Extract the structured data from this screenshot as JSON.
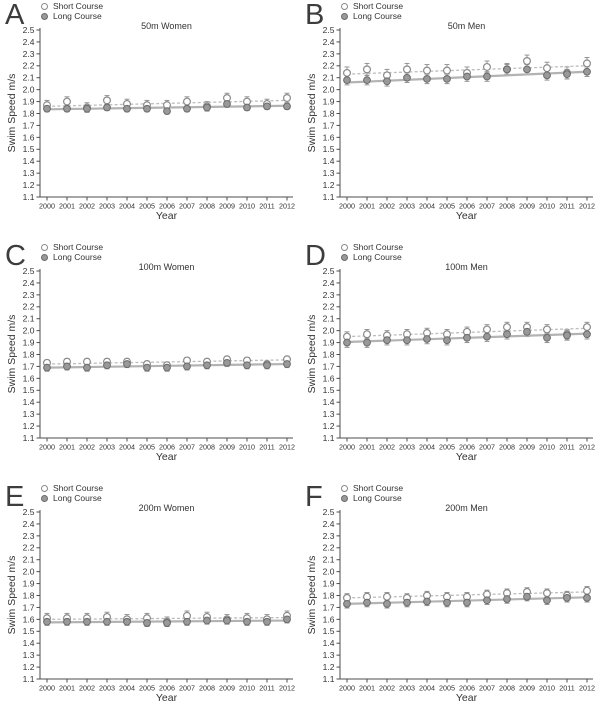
{
  "figure": {
    "legend": {
      "short": "Short Course",
      "long": "Long Course"
    },
    "ylabel": "Swim Speed m/s",
    "xlabel": "Year",
    "years": [
      2000,
      2001,
      2002,
      2003,
      2004,
      2005,
      2006,
      2007,
      2008,
      2009,
      2010,
      2011,
      2012
    ],
    "colors": {
      "short_fill": "#ffffff",
      "short_stroke": "#8a8a8a",
      "long_fill": "#999999",
      "long_stroke": "#6b6b6b",
      "trend_short": "#bdbdbd",
      "trend_long": "#b3b3b3",
      "error_bar": "#8a8a8a",
      "axis": "#4d4d4d",
      "text": "#333333"
    }
  },
  "chart_data": [
    {
      "type": "scatter",
      "panel": "A",
      "title": "50m Women",
      "xlabel": "Year",
      "ylabel": "Swim Speed m/s",
      "x": [
        2000,
        2001,
        2002,
        2003,
        2004,
        2005,
        2006,
        2007,
        2008,
        2009,
        2010,
        2011,
        2012
      ],
      "ylim": [
        1.1,
        2.5
      ],
      "ytick_step": 0.1,
      "grid": false,
      "legend_position": "top-left",
      "series": [
        {
          "name": "Short Course",
          "marker": "open-circle",
          "line": "dashed-trend",
          "values": [
            1.87,
            1.9,
            1.85,
            1.91,
            1.88,
            1.87,
            1.87,
            1.9,
            1.86,
            1.93,
            1.9,
            1.88,
            1.93
          ],
          "error": 0.04,
          "trend": [
            1.86,
            1.91
          ]
        },
        {
          "name": "Long Course",
          "marker": "filled-circle",
          "line": "solid-trend",
          "values": [
            1.84,
            1.84,
            1.84,
            1.85,
            1.84,
            1.84,
            1.82,
            1.84,
            1.85,
            1.88,
            1.85,
            1.86,
            1.86
          ],
          "error": 0.025,
          "trend": [
            1.835,
            1.865
          ]
        }
      ]
    },
    {
      "type": "scatter",
      "panel": "B",
      "title": "50m Men",
      "xlabel": "Year",
      "ylabel": "Swim Speed m/s",
      "x": [
        2000,
        2001,
        2002,
        2003,
        2004,
        2005,
        2006,
        2007,
        2008,
        2009,
        2010,
        2011,
        2012
      ],
      "ylim": [
        1.1,
        2.5
      ],
      "ytick_step": 0.1,
      "grid": false,
      "legend_position": "top-left",
      "series": [
        {
          "name": "Short Course",
          "marker": "open-circle",
          "line": "dashed-trend",
          "values": [
            2.14,
            2.17,
            2.12,
            2.17,
            2.16,
            2.16,
            2.14,
            2.19,
            2.17,
            2.24,
            2.18,
            2.14,
            2.22
          ],
          "error": 0.05,
          "trend": [
            2.13,
            2.2
          ]
        },
        {
          "name": "Long Course",
          "marker": "filled-circle",
          "line": "solid-trend",
          "values": [
            2.08,
            2.08,
            2.07,
            2.1,
            2.09,
            2.09,
            2.11,
            2.11,
            2.17,
            2.17,
            2.12,
            2.13,
            2.15
          ],
          "error": 0.04,
          "trend": [
            2.06,
            2.15
          ]
        }
      ]
    },
    {
      "type": "scatter",
      "panel": "C",
      "title": "100m Women",
      "xlabel": "Year",
      "ylabel": "Swim Speed m/s",
      "x": [
        2000,
        2001,
        2002,
        2003,
        2004,
        2005,
        2006,
        2007,
        2008,
        2009,
        2010,
        2011,
        2012
      ],
      "ylim": [
        1.1,
        2.5
      ],
      "ytick_step": 0.1,
      "grid": false,
      "legend_position": "top-left",
      "series": [
        {
          "name": "Short Course",
          "marker": "open-circle",
          "line": "dashed-trend",
          "values": [
            1.73,
            1.74,
            1.74,
            1.74,
            1.74,
            1.72,
            1.71,
            1.75,
            1.74,
            1.76,
            1.75,
            1.72,
            1.76
          ],
          "error": 0.025,
          "trend": [
            1.72,
            1.755
          ]
        },
        {
          "name": "Long Course",
          "marker": "filled-circle",
          "line": "solid-trend",
          "values": [
            1.69,
            1.7,
            1.69,
            1.71,
            1.72,
            1.69,
            1.69,
            1.7,
            1.71,
            1.73,
            1.71,
            1.71,
            1.72
          ],
          "error": 0.03,
          "trend": [
            1.69,
            1.72
          ]
        }
      ]
    },
    {
      "type": "scatter",
      "panel": "D",
      "title": "100m Men",
      "xlabel": "Year",
      "ylabel": "Swim Speed m/s",
      "x": [
        2000,
        2001,
        2002,
        2003,
        2004,
        2005,
        2006,
        2007,
        2008,
        2009,
        2010,
        2011,
        2012
      ],
      "ylim": [
        1.1,
        2.5
      ],
      "ytick_step": 0.1,
      "grid": false,
      "legend_position": "top-left",
      "series": [
        {
          "name": "Short Course",
          "marker": "open-circle",
          "line": "dashed-trend",
          "values": [
            1.95,
            1.97,
            1.96,
            1.97,
            1.98,
            1.97,
            1.99,
            2.01,
            2.03,
            2.03,
            2.01,
            1.97,
            2.03
          ],
          "error": 0.04,
          "trend": [
            1.95,
            2.02
          ]
        },
        {
          "name": "Long Course",
          "marker": "filled-circle",
          "line": "solid-trend",
          "values": [
            1.9,
            1.9,
            1.92,
            1.92,
            1.93,
            1.92,
            1.94,
            1.95,
            1.97,
            1.99,
            1.94,
            1.96,
            1.97
          ],
          "error": 0.04,
          "trend": [
            1.905,
            1.975
          ]
        }
      ]
    },
    {
      "type": "scatter",
      "panel": "E",
      "title": "200m Women",
      "xlabel": "Year",
      "ylabel": "Swim Speed m/s",
      "x": [
        2000,
        2001,
        2002,
        2003,
        2004,
        2005,
        2006,
        2007,
        2008,
        2009,
        2010,
        2011,
        2012
      ],
      "ylim": [
        1.1,
        2.5
      ],
      "ytick_step": 0.1,
      "grid": false,
      "legend_position": "top-left",
      "series": [
        {
          "name": "Short Course",
          "marker": "open-circle",
          "line": "dashed-trend",
          "values": [
            1.61,
            1.61,
            1.61,
            1.62,
            1.6,
            1.61,
            1.58,
            1.63,
            1.62,
            1.6,
            1.61,
            1.6,
            1.63
          ],
          "error": 0.04,
          "trend": [
            1.6,
            1.615
          ]
        },
        {
          "name": "Long Course",
          "marker": "filled-circle",
          "line": "solid-trend",
          "values": [
            1.58,
            1.58,
            1.58,
            1.58,
            1.58,
            1.57,
            1.57,
            1.58,
            1.59,
            1.59,
            1.58,
            1.58,
            1.6
          ],
          "error": 0.03,
          "trend": [
            1.575,
            1.59
          ]
        }
      ]
    },
    {
      "type": "scatter",
      "panel": "F",
      "title": "200m Men",
      "xlabel": "Year",
      "ylabel": "Swim Speed m/s",
      "x": [
        2000,
        2001,
        2002,
        2003,
        2004,
        2005,
        2006,
        2007,
        2008,
        2009,
        2010,
        2011,
        2012
      ],
      "ylim": [
        1.1,
        2.5
      ],
      "ytick_step": 0.1,
      "grid": false,
      "legend_position": "top-left",
      "series": [
        {
          "name": "Short Course",
          "marker": "open-circle",
          "line": "dashed-trend",
          "values": [
            1.78,
            1.79,
            1.79,
            1.78,
            1.8,
            1.79,
            1.79,
            1.81,
            1.82,
            1.83,
            1.82,
            1.8,
            1.84
          ],
          "error": 0.035,
          "trend": [
            1.78,
            1.83
          ]
        },
        {
          "name": "Long Course",
          "marker": "filled-circle",
          "line": "solid-trend",
          "values": [
            1.73,
            1.74,
            1.73,
            1.74,
            1.75,
            1.74,
            1.74,
            1.76,
            1.77,
            1.79,
            1.76,
            1.78,
            1.78
          ],
          "error": 0.035,
          "trend": [
            1.73,
            1.785
          ]
        }
      ]
    }
  ]
}
